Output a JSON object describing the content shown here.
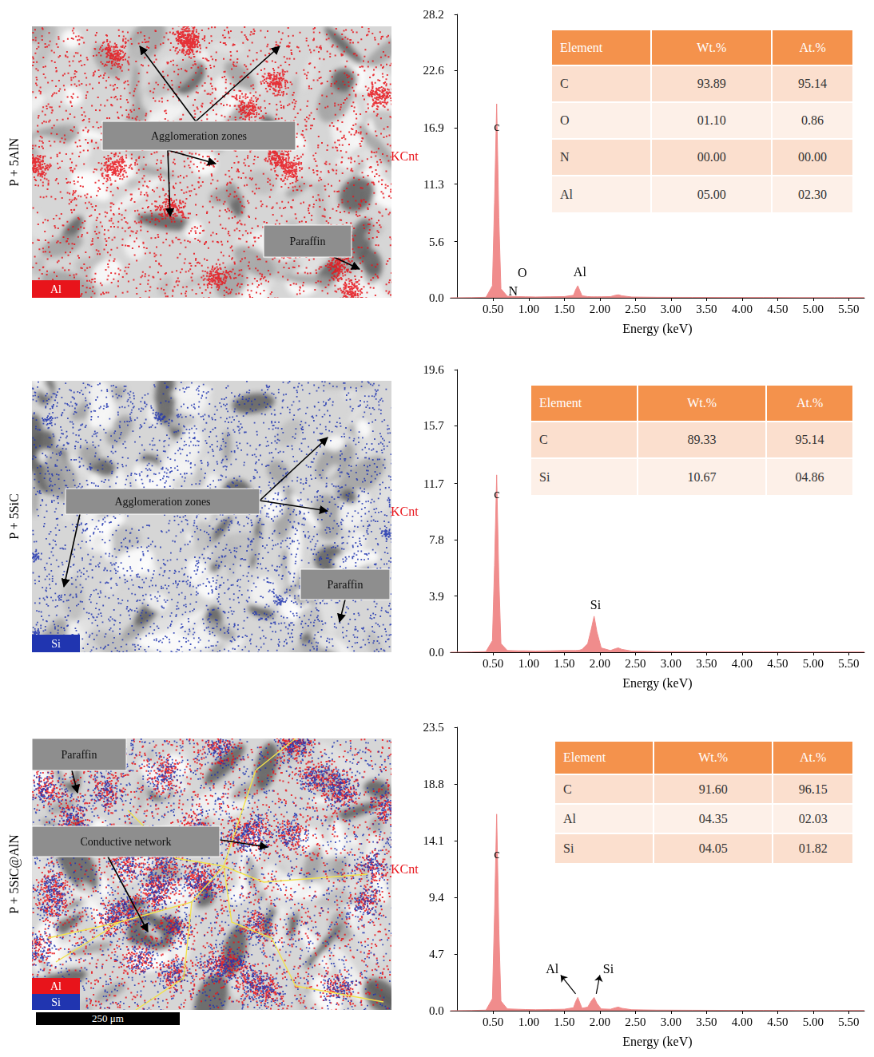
{
  "chart_data": [
    {
      "type": "area",
      "color": "#f08c8c",
      "x": [
        -0.1,
        0.2,
        0.4,
        0.49,
        0.52,
        0.55,
        0.58,
        0.61,
        0.7,
        0.85,
        0.95,
        1.1,
        1.3,
        1.5,
        1.63,
        1.66,
        1.69,
        1.72,
        1.75,
        1.83,
        1.88,
        1.92,
        1.96,
        2.02,
        2.15,
        2.22,
        2.26,
        2.31,
        2.45,
        2.8,
        3.3,
        3.8,
        4.3,
        4.8,
        5.3,
        5.72
      ],
      "values": [
        0,
        0.02,
        0.05,
        1.2,
        9.5,
        19.3,
        8.0,
        0.9,
        0.15,
        0.12,
        0.1,
        0.08,
        0.1,
        0.12,
        0.25,
        0.8,
        1.2,
        0.7,
        0.2,
        0.12,
        0.1,
        0.1,
        0.1,
        0.1,
        0.12,
        0.25,
        0.3,
        0.2,
        0.08,
        0.05,
        0.04,
        0.03,
        0.03,
        0.02,
        0.02,
        0.02
      ],
      "xlim": [
        -0.1,
        5.72
      ],
      "xticks": [
        {
          "value": 0.5,
          "label": "0.50"
        },
        {
          "value": 1.0,
          "label": "1.00"
        },
        {
          "value": 1.5,
          "label": "1.50"
        },
        {
          "value": 2.0,
          "label": "2.00"
        },
        {
          "value": 2.5,
          "label": "2.50"
        },
        {
          "value": 3.0,
          "label": "3.00"
        },
        {
          "value": 3.5,
          "label": "3.50"
        },
        {
          "value": 4.0,
          "label": "4.00"
        },
        {
          "value": 4.5,
          "label": "4.50"
        },
        {
          "value": 5.0,
          "label": "5.00"
        },
        {
          "value": 5.5,
          "label": "5.50"
        }
      ],
      "ylim": [
        0,
        28.2
      ],
      "yticks": [
        {
          "value": 0,
          "label": "0.0"
        },
        5.6,
        11.3,
        16.9,
        22.6,
        28.2
      ],
      "x_label": "Energy (keV)",
      "y_label": "KCnt",
      "annotations": [
        {
          "text": "c",
          "x": 0.55,
          "y": 17.0
        },
        {
          "text": "N",
          "x": 0.78,
          "y": 0.7
        },
        {
          "text": "O",
          "x": 0.91,
          "y": 2.5
        },
        {
          "text": "Al",
          "x": 1.72,
          "y": 2.6
        }
      ]
    },
    {
      "type": "area",
      "color": "#f08c8c",
      "x": [
        -0.1,
        0.2,
        0.4,
        0.49,
        0.52,
        0.55,
        0.58,
        0.61,
        0.7,
        0.85,
        0.95,
        1.1,
        1.3,
        1.5,
        1.63,
        1.66,
        1.69,
        1.72,
        1.75,
        1.83,
        1.88,
        1.92,
        1.96,
        2.02,
        2.15,
        2.22,
        2.26,
        2.31,
        2.45,
        2.8,
        3.3,
        3.8,
        4.3,
        4.8,
        5.3,
        5.72
      ],
      "values": [
        0,
        0.02,
        0.05,
        0.8,
        6.0,
        12.3,
        5.2,
        0.6,
        0.12,
        0.1,
        0.1,
        0.08,
        0.1,
        0.12,
        0.12,
        0.12,
        0.13,
        0.15,
        0.2,
        0.6,
        1.6,
        2.5,
        1.4,
        0.3,
        0.12,
        0.25,
        0.3,
        0.2,
        0.08,
        0.05,
        0.04,
        0.03,
        0.03,
        0.02,
        0.02,
        0.02
      ],
      "xlim": [
        -0.1,
        5.72
      ],
      "xticks": [
        {
          "value": 0.5,
          "label": "0.50"
        },
        {
          "value": 1.0,
          "label": "1.00"
        },
        {
          "value": 1.5,
          "label": "1.50"
        },
        {
          "value": 2.0,
          "label": "2.00"
        },
        {
          "value": 2.5,
          "label": "2.50"
        },
        {
          "value": 3.0,
          "label": "3.00"
        },
        {
          "value": 3.5,
          "label": "3.50"
        },
        {
          "value": 4.0,
          "label": "4.00"
        },
        {
          "value": 4.5,
          "label": "4.50"
        },
        {
          "value": 5.0,
          "label": "5.00"
        },
        {
          "value": 5.5,
          "label": "5.50"
        }
      ],
      "ylim": [
        0,
        19.6
      ],
      "yticks": [
        {
          "value": 0,
          "label": "0.0"
        },
        3.9,
        7.8,
        11.7,
        15.7,
        19.6
      ],
      "x_label": "Energy (keV)",
      "y_label": "KCnt",
      "annotations": [
        {
          "text": "c",
          "x": 0.55,
          "y": 11.0
        },
        {
          "text": "Si",
          "x": 1.94,
          "y": 3.3
        }
      ]
    },
    {
      "type": "area",
      "color": "#f08c8c",
      "x": [
        -0.1,
        0.2,
        0.4,
        0.49,
        0.52,
        0.55,
        0.58,
        0.61,
        0.7,
        0.85,
        0.95,
        1.1,
        1.3,
        1.5,
        1.63,
        1.66,
        1.69,
        1.72,
        1.75,
        1.83,
        1.88,
        1.92,
        1.96,
        2.02,
        2.15,
        2.22,
        2.26,
        2.31,
        2.45,
        2.8,
        3.3,
        3.8,
        4.3,
        4.8,
        5.3,
        5.72
      ],
      "values": [
        0,
        0.02,
        0.05,
        1.0,
        8.0,
        16.3,
        6.8,
        0.8,
        0.15,
        0.12,
        0.1,
        0.08,
        0.1,
        0.12,
        0.25,
        0.75,
        1.1,
        0.65,
        0.2,
        0.3,
        0.8,
        1.1,
        0.6,
        0.15,
        0.12,
        0.25,
        0.3,
        0.2,
        0.08,
        0.05,
        0.04,
        0.03,
        0.03,
        0.02,
        0.02,
        0.02
      ],
      "xlim": [
        -0.1,
        5.72
      ],
      "xticks": [
        {
          "value": 0.5,
          "label": "0.50"
        },
        {
          "value": 1.0,
          "label": "1.00"
        },
        {
          "value": 1.5,
          "label": "1.50"
        },
        {
          "value": 2.0,
          "label": "2.00"
        },
        {
          "value": 2.5,
          "label": "2.50"
        },
        {
          "value": 3.0,
          "label": "3.00"
        },
        {
          "value": 3.5,
          "label": "3.50"
        },
        {
          "value": 4.0,
          "label": "4.00"
        },
        {
          "value": 4.5,
          "label": "4.50"
        },
        {
          "value": 5.0,
          "label": "5.00"
        },
        {
          "value": 5.5,
          "label": "5.50"
        }
      ],
      "ylim": [
        0,
        23.5
      ],
      "yticks": [
        {
          "value": 0,
          "label": "0.0"
        },
        4.7,
        9.4,
        14.1,
        18.8,
        23.5
      ],
      "x_label": "Energy (keV)",
      "y_label": "KCnt",
      "annotations": [
        {
          "text": "c",
          "x": 0.55,
          "y": 13.0
        },
        {
          "text": "Al",
          "x": 1.33,
          "y": 3.5,
          "marker": "arrow"
        },
        {
          "text": "Si",
          "x": 2.12,
          "y": 3.5,
          "marker": "arrow"
        }
      ]
    }
  ],
  "tables": [
    {
      "header": [
        "Element",
        "Wt.%",
        "At.%"
      ],
      "rows": [
        [
          "C",
          "93.89",
          "95.14"
        ],
        [
          "O",
          "01.10",
          "0.86"
        ],
        [
          "N",
          "00.00",
          "00.00"
        ],
        [
          "Al",
          "05.00",
          "02.30"
        ]
      ]
    },
    {
      "header": [
        "Element",
        "Wt.%",
        "At.%"
      ],
      "rows": [
        [
          "C",
          "89.33",
          "95.14"
        ],
        [
          "Si",
          "10.67",
          "04.86"
        ]
      ]
    },
    {
      "header": [
        "Element",
        "Wt.%",
        "At.%"
      ],
      "rows": [
        [
          "C",
          "91.60",
          "96.15"
        ],
        [
          "Al",
          "04.35",
          "02.03"
        ],
        [
          "Si",
          "04.05",
          "01.82"
        ]
      ]
    }
  ],
  "maps": [
    {
      "label": "P + 5AlN",
      "elements": [
        {
          "symbol": "Al",
          "color": "#e8141b"
        }
      ],
      "callouts": [
        "Agglomeration zones",
        "Paraffin"
      ]
    },
    {
      "label": "P + 5SiC",
      "elements": [
        {
          "symbol": "Si",
          "color": "#2035b0"
        }
      ],
      "callouts": [
        "Agglomeration zones",
        "Paraffin"
      ]
    },
    {
      "label": "P + 5SiC@AlN",
      "elements": [
        {
          "symbol": "Al",
          "color": "#e8141b"
        },
        {
          "symbol": "Si",
          "color": "#2035b0"
        }
      ],
      "callouts": [
        "Paraffin",
        "Conductive network"
      ]
    }
  ],
  "scale_bar": "250 μm"
}
